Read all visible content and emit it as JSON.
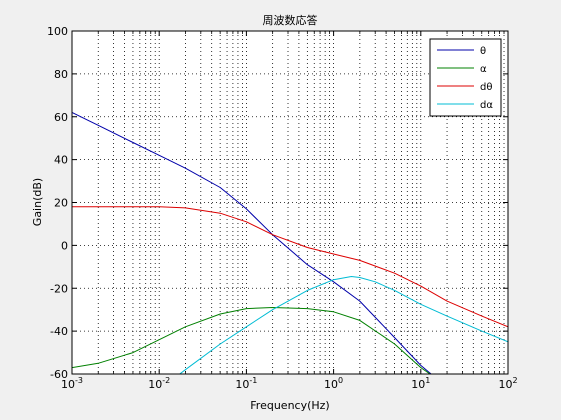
{
  "chart_data": {
    "type": "line",
    "title": "周波数応答",
    "xlabel": "Frequency(Hz)",
    "ylabel": "Gain(dB)",
    "xscale": "log",
    "xlim": [
      0.001,
      100
    ],
    "ylim": [
      -60,
      100
    ],
    "grid": "major and minor (dotted)",
    "legend_location": "top-right",
    "x_tick_labels": [
      {
        "mant": "10",
        "exp": "-3"
      },
      {
        "mant": "10",
        "exp": "-2"
      },
      {
        "mant": "10",
        "exp": "-1"
      },
      {
        "mant": "10",
        "exp": "0"
      },
      {
        "mant": "10",
        "exp": "1"
      },
      {
        "mant": "10",
        "exp": "2"
      }
    ],
    "y_ticks": [
      -60,
      -40,
      -20,
      0,
      20,
      40,
      60,
      80,
      100
    ],
    "series": [
      {
        "name": "θ",
        "color": "#0000aa",
        "x": [
          0.001,
          0.002,
          0.005,
          0.01,
          0.02,
          0.05,
          0.1,
          0.2,
          0.5,
          1,
          2,
          5,
          10,
          15
        ],
        "y": [
          62,
          56,
          48,
          42,
          36,
          27,
          17,
          5,
          -9,
          -17,
          -26,
          -43,
          -56,
          -62
        ]
      },
      {
        "name": "α",
        "color": "#008000",
        "x": [
          0.001,
          0.002,
          0.005,
          0.01,
          0.02,
          0.05,
          0.1,
          0.2,
          0.5,
          1,
          2,
          5,
          10,
          15
        ],
        "y": [
          -57,
          -55,
          -50,
          -44,
          -38,
          -32,
          -29.5,
          -29,
          -29.5,
          -31,
          -35,
          -46,
          -57,
          -62
        ]
      },
      {
        "name": "dθ",
        "color": "#dd0000",
        "x": [
          0.001,
          0.002,
          0.005,
          0.01,
          0.02,
          0.05,
          0.1,
          0.2,
          0.5,
          1,
          2,
          5,
          10,
          20,
          50,
          100
        ],
        "y": [
          18,
          18,
          18,
          18,
          17.5,
          15,
          11,
          5,
          -1,
          -4,
          -7,
          -13,
          -19,
          -26,
          -33,
          -38
        ]
      },
      {
        "name": "dα",
        "color": "#00bcd4",
        "x": [
          0.016,
          0.02,
          0.05,
          0.1,
          0.2,
          0.5,
          1,
          1.6,
          2,
          3,
          5,
          10,
          20,
          50,
          100
        ],
        "y": [
          -61,
          -58,
          -46,
          -38,
          -30,
          -21,
          -16,
          -14.5,
          -15,
          -17,
          -21,
          -27.5,
          -33,
          -40,
          -45
        ]
      }
    ]
  }
}
